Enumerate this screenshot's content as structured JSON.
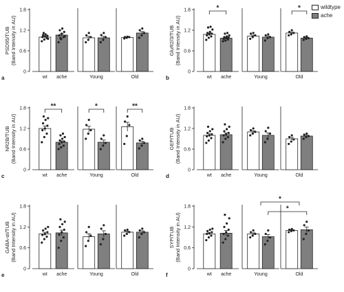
{
  "legend": [
    {
      "label": "wildtype",
      "color": "#ffffff"
    },
    {
      "label": "ache",
      "color": "#7f7f7f"
    }
  ],
  "chart_data": [
    {
      "type": "bar",
      "panel_label": "a",
      "ylabel": "PSD95/TUB\n(Band Intensity in AU)",
      "ylim": [
        0,
        1.8
      ],
      "yticks": [
        "0",
        "0.6",
        "1.2",
        "1.8"
      ],
      "groups": [
        {
          "categories": [
            "wt",
            "ache"
          ],
          "values": [
            1.0,
            1.06
          ],
          "fills": [
            "wildtype",
            "ache"
          ],
          "points": [
            [
              0.88,
              0.93,
              0.97,
              1.0,
              1.02,
              1.04,
              1.06,
              1.08,
              0.95,
              1.12
            ],
            [
              0.85,
              0.94,
              1.0,
              1.05,
              1.1,
              1.15,
              1.2,
              1.25,
              1.02,
              0.97
            ]
          ]
        },
        {
          "categories": [
            "Young"
          ],
          "values": [
            0.98,
            0.98
          ],
          "fills": [
            "wildtype",
            "ache"
          ],
          "points": [
            [
              0.85,
              0.92,
              1.0,
              1.05,
              1.12
            ],
            [
              0.85,
              0.92,
              1.0,
              1.06,
              1.12
            ]
          ]
        },
        {
          "categories": [
            "Old"
          ],
          "values": [
            0.99,
            1.12
          ],
          "fills": [
            "wildtype",
            "ache"
          ],
          "points": [
            [
              0.96,
              0.98,
              1.0,
              1.0,
              1.01
            ],
            [
              0.98,
              1.05,
              1.12,
              1.2,
              1.25
            ]
          ]
        }
      ],
      "significance": []
    },
    {
      "type": "bar",
      "panel_label": "b",
      "ylabel": "GluR2/3/TUB\n(Band Intensity in AU)",
      "ylim": [
        0,
        1.8
      ],
      "yticks": [
        "0",
        "0.6",
        "1.2",
        "1.8"
      ],
      "groups": [
        {
          "categories": [
            "wt",
            "ache"
          ],
          "values": [
            1.08,
            0.97
          ],
          "fills": [
            "wildtype",
            "ache"
          ],
          "points": [
            [
              0.92,
              0.98,
              1.02,
              1.05,
              1.08,
              1.1,
              1.12,
              1.15,
              1.22,
              1.28,
              1.3
            ],
            [
              0.88,
              0.9,
              0.93,
              0.95,
              0.97,
              0.99,
              1.0,
              1.02,
              1.05,
              1.1,
              1.12
            ]
          ]
        },
        {
          "categories": [
            "Young"
          ],
          "values": [
            1.03,
            1.0
          ],
          "fills": [
            "wildtype",
            "ache"
          ],
          "points": [
            [
              0.95,
              1.0,
              1.05,
              1.1,
              1.12
            ],
            [
              0.9,
              0.97,
              1.0,
              1.05,
              1.08
            ]
          ]
        },
        {
          "categories": [
            "Old"
          ],
          "values": [
            1.12,
            0.97
          ],
          "fills": [
            "wildtype",
            "ache"
          ],
          "points": [
            [
              1.05,
              1.08,
              1.12,
              1.15,
              1.2
            ],
            [
              0.92,
              0.95,
              0.97,
              1.0,
              1.02
            ]
          ]
        }
      ],
      "significance": [
        {
          "label": "*",
          "from": [
            0,
            0
          ],
          "to": [
            0,
            1
          ]
        },
        {
          "label": "*",
          "from": [
            2,
            0
          ],
          "to": [
            2,
            1
          ]
        }
      ]
    },
    {
      "type": "bar",
      "panel_label": "c",
      "ylabel": "NR2B/TUB\n(Band Intensity in AU)",
      "ylim": [
        0,
        1.8
      ],
      "yticks": [
        "0",
        "0.6",
        "1.2",
        "1.8"
      ],
      "groups": [
        {
          "categories": [
            "wt",
            "ache"
          ],
          "values": [
            1.2,
            0.8
          ],
          "fills": [
            "wildtype",
            "ache"
          ],
          "points": [
            [
              0.8,
              0.95,
              1.05,
              1.15,
              1.2,
              1.28,
              1.35,
              1.45,
              1.5,
              1.55
            ],
            [
              0.6,
              0.65,
              0.7,
              0.75,
              0.8,
              0.82,
              0.85,
              0.9,
              0.95,
              1.0,
              1.05
            ]
          ]
        },
        {
          "categories": [
            "Young"
          ],
          "values": [
            1.18,
            0.8
          ],
          "fills": [
            "wildtype",
            "ache"
          ],
          "points": [
            [
              0.9,
              1.05,
              1.15,
              1.3,
              1.45
            ],
            [
              0.6,
              0.7,
              0.78,
              0.9,
              1.0
            ]
          ]
        },
        {
          "categories": [
            "Old"
          ],
          "values": [
            1.25,
            0.78
          ],
          "fills": [
            "wildtype",
            "ache"
          ],
          "points": [
            [
              0.75,
              0.98,
              1.3,
              1.4,
              1.55
            ],
            [
              0.62,
              0.7,
              0.78,
              0.85,
              0.9
            ]
          ]
        }
      ],
      "significance": [
        {
          "label": "**",
          "from": [
            0,
            0
          ],
          "to": [
            0,
            1
          ]
        },
        {
          "label": "*",
          "from": [
            1,
            0
          ],
          "to": [
            1,
            1
          ]
        },
        {
          "label": "**",
          "from": [
            2,
            0
          ],
          "to": [
            2,
            1
          ]
        }
      ]
    },
    {
      "type": "bar",
      "panel_label": "d",
      "ylabel": "GEP/TUB\n(Band Intensity in AU)",
      "ylim": [
        0,
        1.8
      ],
      "yticks": [
        "0",
        "0.6",
        "1.2",
        "1.8"
      ],
      "groups": [
        {
          "categories": [
            "wt",
            "ache"
          ],
          "values": [
            1.0,
            1.02
          ],
          "fills": [
            "wildtype",
            "ache"
          ],
          "points": [
            [
              0.78,
              0.85,
              0.92,
              0.97,
              1.0,
              1.03,
              1.07,
              1.12,
              1.18,
              1.25
            ],
            [
              0.8,
              0.9,
              0.95,
              1.0,
              1.03,
              1.07,
              1.12,
              1.18,
              1.25,
              1.32
            ]
          ]
        },
        {
          "categories": [
            "Young"
          ],
          "values": [
            1.1,
            1.0
          ],
          "fills": [
            "wildtype",
            "ache"
          ],
          "points": [
            [
              1.0,
              1.05,
              1.1,
              1.15,
              1.2
            ],
            [
              0.8,
              0.9,
              1.05,
              1.12,
              1.22
            ]
          ]
        },
        {
          "categories": [
            "Old"
          ],
          "values": [
            0.9,
            0.98
          ],
          "fills": [
            "wildtype",
            "ache"
          ],
          "points": [
            [
              0.75,
              0.82,
              0.88,
              0.95,
              1.0
            ],
            [
              0.9,
              0.95,
              0.98,
              1.02,
              1.05
            ]
          ]
        }
      ],
      "significance": []
    },
    {
      "type": "bar",
      "panel_label": "e",
      "ylabel": "GABA-αI/TUB\n(Band Intensity in AU)",
      "ylim": [
        0,
        1.8
      ],
      "yticks": [
        "0",
        "0.6",
        "1.2",
        "1.8"
      ],
      "groups": [
        {
          "categories": [
            "wt",
            "ache"
          ],
          "values": [
            1.0,
            1.03
          ],
          "fills": [
            "wildtype",
            "ache"
          ],
          "points": [
            [
              0.75,
              0.85,
              0.92,
              0.97,
              1.0,
              1.05,
              1.1,
              1.15,
              1.2
            ],
            [
              0.6,
              0.8,
              0.9,
              0.98,
              1.05,
              1.12,
              1.2,
              1.28,
              1.35,
              1.42
            ]
          ]
        },
        {
          "categories": [
            "Young"
          ],
          "values": [
            0.92,
            1.0
          ],
          "fills": [
            "wildtype",
            "ache"
          ],
          "points": [
            [
              0.65,
              0.8,
              0.95,
              1.05,
              1.2
            ],
            [
              0.7,
              0.85,
              1.0,
              1.15,
              1.25
            ]
          ]
        },
        {
          "categories": [
            "Old"
          ],
          "values": [
            1.05,
            1.05
          ],
          "fills": [
            "wildtype",
            "ache"
          ],
          "points": [
            [
              0.95,
              1.0,
              1.05,
              1.1,
              1.12
            ],
            [
              0.9,
              1.0,
              1.05,
              1.1,
              1.15
            ]
          ]
        }
      ],
      "significance": []
    },
    {
      "type": "bar",
      "panel_label": "f",
      "ylabel": "SYP/TUB\n(Band Intensity in AU)",
      "ylim": [
        0,
        1.8
      ],
      "yticks": [
        "0",
        "0.6",
        "1.2",
        "1.8"
      ],
      "groups": [
        {
          "categories": [
            "wt",
            "ache"
          ],
          "values": [
            1.0,
            1.02
          ],
          "fills": [
            "wildtype",
            "ache"
          ],
          "points": [
            [
              0.82,
              0.9,
              0.95,
              1.0,
              1.02,
              1.05,
              1.08,
              1.12,
              1.15
            ],
            [
              0.75,
              0.85,
              0.95,
              1.0,
              1.05,
              1.12,
              1.2,
              1.3,
              1.45,
              1.55
            ]
          ]
        },
        {
          "categories": [
            "Young"
          ],
          "values": [
            1.0,
            0.92
          ],
          "fills": [
            "wildtype",
            "ache"
          ],
          "points": [
            [
              0.9,
              0.95,
              1.0,
              1.05,
              1.1
            ],
            [
              0.7,
              0.8,
              0.9,
              1.0,
              1.1
            ]
          ]
        },
        {
          "categories": [
            "Old"
          ],
          "values": [
            1.1,
            1.12
          ],
          "fills": [
            "wildtype",
            "ache"
          ],
          "points": [
            [
              1.05,
              1.08,
              1.1,
              1.12,
              1.14
            ],
            [
              0.85,
              1.0,
              1.1,
              1.25,
              1.35
            ]
          ]
        }
      ],
      "significance": [
        {
          "label": "*",
          "from": [
            1,
            "group"
          ],
          "to": [
            2,
            "group"
          ]
        },
        {
          "label": "*",
          "from": [
            1,
            1
          ],
          "to": [
            2,
            1
          ]
        }
      ]
    }
  ]
}
